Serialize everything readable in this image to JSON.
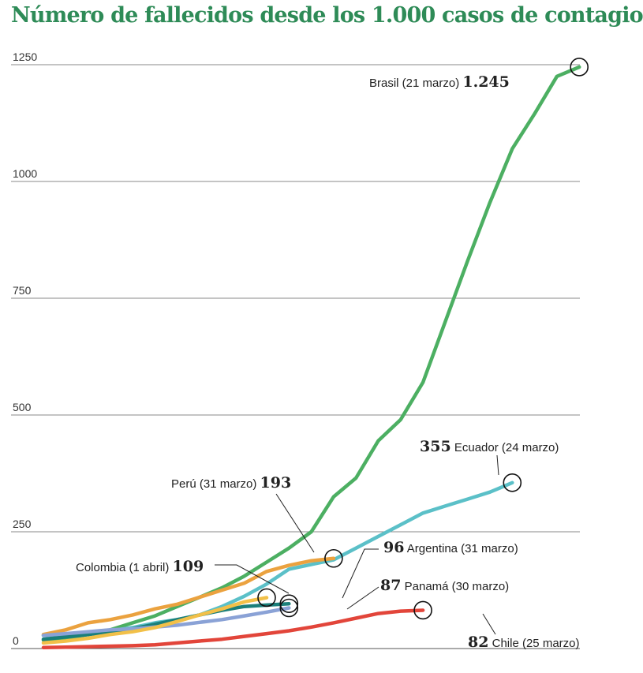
{
  "chart_data": {
    "type": "line",
    "title": "Número de fallecidos desde los 1.000 casos de contagio",
    "xlabel": "",
    "ylabel": "",
    "ylim": [
      0,
      1250
    ],
    "y_ticks": [
      "0",
      "250",
      "500",
      "750",
      "1000",
      "1250"
    ],
    "grid": "horizontal",
    "series": [
      {
        "name": "Brasil",
        "color": "#4caf62",
        "values": [
          18,
          22,
          30,
          40,
          55,
          70,
          90,
          110,
          130,
          155,
          185,
          215,
          250,
          325,
          365,
          445,
          490,
          570,
          700,
          830,
          955,
          1070,
          1145,
          1225,
          1245
        ],
        "annotation": {
          "number": "1.245",
          "text": "Brasil (21 marzo)"
        }
      },
      {
        "name": "Ecuador",
        "color": "#5bc0c8",
        "values": [
          28,
          30,
          32,
          38,
          45,
          55,
          62,
          72,
          90,
          112,
          138,
          170,
          180,
          190,
          215,
          240,
          265,
          290,
          305,
          320,
          335,
          355
        ],
        "annotation": {
          "number": "355",
          "text": "Ecuador (24 marzo)"
        }
      },
      {
        "name": "Perú",
        "color": "#eba23f",
        "values": [
          30,
          40,
          55,
          62,
          72,
          85,
          95,
          110,
          125,
          140,
          165,
          178,
          188,
          193
        ],
        "annotation": {
          "number": "193",
          "text": "Perú (31 marzo)"
        }
      },
      {
        "name": "Colombia",
        "color": "#f2c048",
        "values": [
          12,
          16,
          22,
          30,
          36,
          45,
          58,
          72,
          85,
          100,
          109
        ],
        "annotation": {
          "number": "109",
          "text": "Colombia (1 abril)"
        }
      },
      {
        "name": "Argentina",
        "color": "#1a7f7a",
        "values": [
          20,
          25,
          30,
          36,
          42,
          52,
          62,
          72,
          82,
          90,
          93,
          96
        ],
        "annotation": {
          "number": "96",
          "text": "Argentina (31 marzo)"
        }
      },
      {
        "name": "Panamá",
        "color": "#8aa2d6",
        "values": [
          28,
          32,
          36,
          40,
          42,
          46,
          50,
          56,
          62,
          70,
          78,
          87
        ],
        "annotation": {
          "number": "87",
          "text": "Panamá (30 marzo)"
        }
      },
      {
        "name": "Chile",
        "color": "#e2453a",
        "values": [
          2,
          3,
          4,
          5,
          6,
          8,
          12,
          16,
          20,
          26,
          32,
          38,
          46,
          55,
          65,
          75,
          80,
          82
        ],
        "annotation": {
          "number": "82",
          "text": "Chile (25 marzo)"
        }
      }
    ]
  }
}
